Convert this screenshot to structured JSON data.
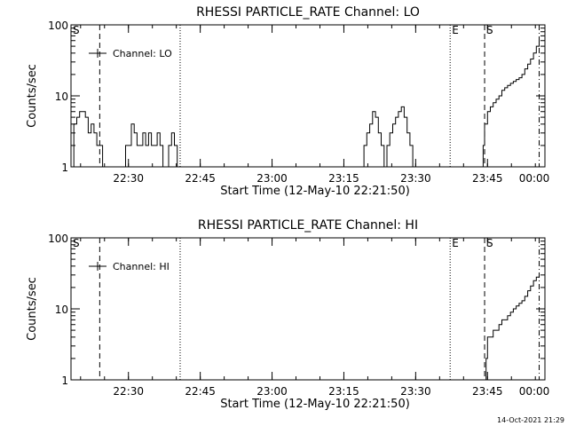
{
  "footer_timestamp": "14-Oct-2021 21:29",
  "chart_data": [
    {
      "type": "line",
      "title": "RHESSI PARTICLE_RATE Channel: LO",
      "xlabel": "Start Time (12-May-10 22:21:50)",
      "ylabel": "Counts/sec",
      "yscale": "log",
      "ylim": [
        1,
        100
      ],
      "xlim_minutes": [
        22.3,
        23.95
      ],
      "x_tick_labels": [
        "22:30",
        "22:45",
        "23:00",
        "23:15",
        "23:30",
        "23:45",
        "00:00"
      ],
      "x_tick_minutes": [
        22.5,
        22.75,
        23.0,
        23.25,
        23.5,
        23.75,
        24.0
      ],
      "y_tick_labels": [
        "1",
        "10",
        "100"
      ],
      "y_tick_values": [
        1,
        10,
        100
      ],
      "legend": {
        "label": "Channel: LO",
        "placement": "top-left"
      },
      "markers": [
        {
          "label": "S",
          "t": 22.3,
          "style": "none"
        },
        {
          "label": "",
          "t": 22.4,
          "style": "dashed"
        },
        {
          "label": "",
          "t": 22.68,
          "style": "dotted"
        },
        {
          "label": "E",
          "t": 23.62,
          "style": "dotted"
        },
        {
          "label": "S",
          "t": 23.74,
          "style": "dashed"
        },
        {
          "label": "",
          "t": 23.93,
          "style": "dashdot"
        }
      ],
      "series": [
        {
          "x": [
            22.3,
            22.31,
            22.32,
            22.33,
            22.34,
            22.35,
            22.36,
            22.37,
            22.38,
            22.39,
            22.4,
            22.41,
            22.42,
            22.43,
            22.44,
            22.45,
            22.46,
            22.47,
            22.48,
            22.49,
            22.5,
            22.51,
            22.52,
            22.53,
            22.54,
            22.55,
            22.56,
            22.57,
            22.58,
            22.59,
            22.6,
            22.61,
            22.62,
            22.63,
            22.64,
            22.65,
            22.66,
            22.67,
            22.68,
            22.69
          ],
          "y": [
            1,
            4,
            5,
            6,
            6,
            5,
            3,
            4,
            3,
            2,
            2,
            1,
            1,
            1,
            1,
            1,
            1,
            1,
            1,
            2,
            2,
            4,
            3,
            2,
            2,
            3,
            2,
            3,
            2,
            2,
            3,
            2,
            1,
            1,
            2,
            3,
            2,
            1,
            1,
            1
          ]
        },
        {
          "x": [
            23.3,
            23.31,
            23.32,
            23.33,
            23.34,
            23.35,
            23.36,
            23.37,
            23.38,
            23.39,
            23.4,
            23.41,
            23.42,
            23.43,
            23.44,
            23.45,
            23.46,
            23.47,
            23.48,
            23.49,
            23.5,
            23.51
          ],
          "y": [
            1,
            1,
            2,
            3,
            4,
            6,
            5,
            3,
            2,
            1,
            2,
            3,
            4,
            5,
            6,
            7,
            5,
            3,
            2,
            1,
            1,
            1
          ]
        },
        {
          "x": [
            23.73,
            23.735,
            23.74,
            23.75,
            23.76,
            23.77,
            23.78,
            23.79,
            23.8,
            23.81,
            23.82,
            23.83,
            23.84,
            23.85,
            23.86,
            23.87,
            23.88,
            23.89,
            23.9,
            23.91,
            23.92,
            23.93
          ],
          "y": [
            1,
            2,
            4,
            6,
            7,
            8,
            9,
            10,
            12,
            13,
            14,
            15,
            16,
            17,
            18,
            20,
            24,
            28,
            33,
            40,
            50,
            60
          ]
        }
      ]
    },
    {
      "type": "line",
      "title": "RHESSI PARTICLE_RATE Channel: HI",
      "xlabel": "Start Time (12-May-10 22:21:50)",
      "ylabel": "Counts/sec",
      "yscale": "log",
      "ylim": [
        1,
        100
      ],
      "xlim_minutes": [
        22.3,
        23.95
      ],
      "x_tick_labels": [
        "22:30",
        "22:45",
        "23:00",
        "23:15",
        "23:30",
        "23:45",
        "00:00"
      ],
      "x_tick_minutes": [
        22.5,
        22.75,
        23.0,
        23.25,
        23.5,
        23.75,
        24.0
      ],
      "y_tick_labels": [
        "1",
        "10",
        "100"
      ],
      "y_tick_values": [
        1,
        10,
        100
      ],
      "legend": {
        "label": "Channel: HI",
        "placement": "top-left"
      },
      "markers": [
        {
          "label": "S",
          "t": 22.3,
          "style": "none"
        },
        {
          "label": "",
          "t": 22.4,
          "style": "dashed"
        },
        {
          "label": "",
          "t": 22.68,
          "style": "dotted"
        },
        {
          "label": "E",
          "t": 23.62,
          "style": "dotted"
        },
        {
          "label": "S",
          "t": 23.74,
          "style": "dashed"
        },
        {
          "label": "",
          "t": 23.93,
          "style": "dashdot"
        }
      ],
      "series": [
        {
          "x": [
            23.74,
            23.745,
            23.75,
            23.76,
            23.77,
            23.78,
            23.79,
            23.8,
            23.81,
            23.82,
            23.83,
            23.84,
            23.85,
            23.86,
            23.87,
            23.88,
            23.89,
            23.9,
            23.91,
            23.92,
            23.93
          ],
          "y": [
            1,
            2,
            4,
            4,
            5,
            5,
            6,
            7,
            7,
            8,
            9,
            10,
            11,
            12,
            13,
            15,
            18,
            21,
            25,
            28,
            30
          ]
        }
      ]
    }
  ]
}
